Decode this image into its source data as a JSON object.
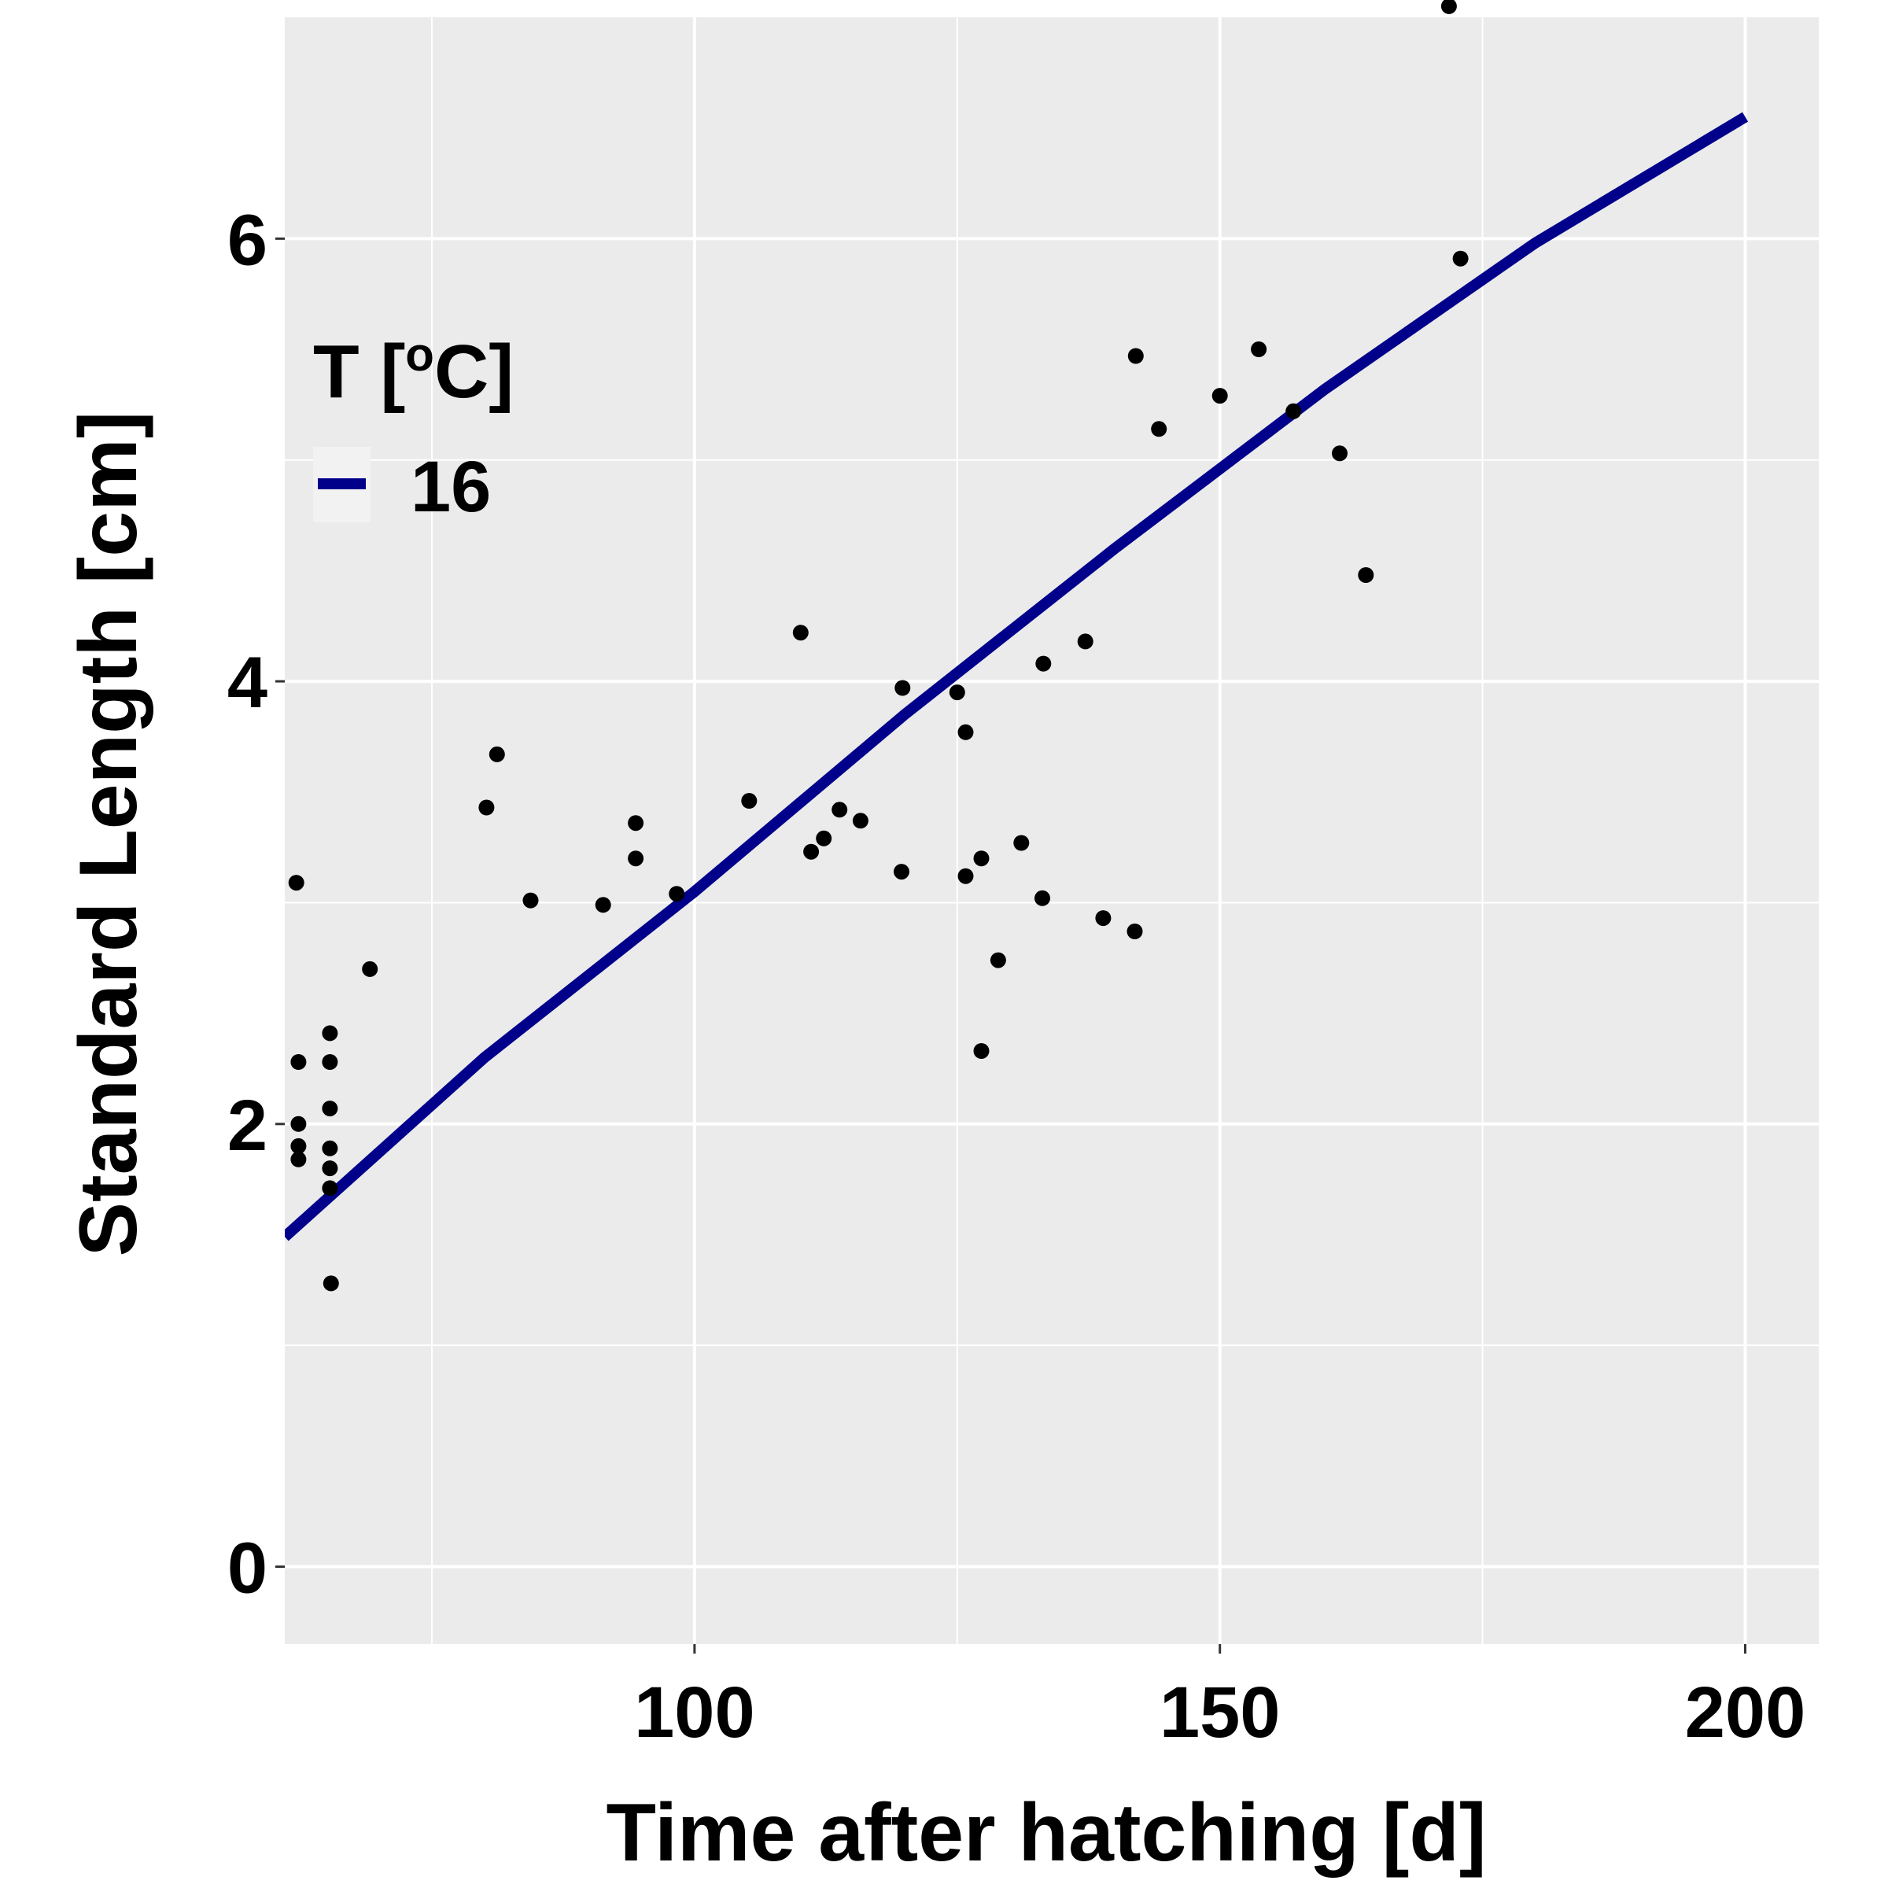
{
  "chart_data": {
    "type": "scatter",
    "xlabel": "Time after hatching [d]",
    "ylabel": "Standard Length [cm]",
    "xlim": [
      61,
      207
    ],
    "ylim": [
      -0.35,
      7.0
    ],
    "xticks": [
      100,
      150,
      200
    ],
    "yticks": [
      0,
      2,
      4,
      6
    ],
    "grid": true,
    "legend": {
      "placement": "top-left",
      "title": "T [",
      "title_sup": "o",
      "title_end": "C]",
      "entries": [
        {
          "label": "16",
          "color": "#00008B"
        }
      ]
    },
    "colors": {
      "panel": "#EBEBEB",
      "grid": "#FFFFFF",
      "points": "#000000",
      "fit_line": "#00008B"
    },
    "points": [
      [
        62.1,
        3.09
      ],
      [
        62.3,
        2.28
      ],
      [
        62.3,
        2.0
      ],
      [
        62.3,
        1.9
      ],
      [
        62.3,
        1.84
      ],
      [
        65.3,
        2.41
      ],
      [
        65.3,
        2.28
      ],
      [
        65.3,
        2.07
      ],
      [
        65.3,
        1.89
      ],
      [
        65.3,
        1.8
      ],
      [
        65.3,
        1.71
      ],
      [
        65.4,
        1.28
      ],
      [
        69.1,
        2.7
      ],
      [
        80.2,
        3.43
      ],
      [
        81.2,
        3.67
      ],
      [
        84.4,
        3.01
      ],
      [
        91.3,
        2.99
      ],
      [
        94.4,
        3.36
      ],
      [
        94.4,
        3.2
      ],
      [
        98.3,
        3.04
      ],
      [
        105.2,
        3.46
      ],
      [
        110.1,
        4.22
      ],
      [
        111.1,
        3.23
      ],
      [
        112.3,
        3.29
      ],
      [
        113.8,
        3.42
      ],
      [
        115.8,
        3.37
      ],
      [
        119.7,
        3.14
      ],
      [
        119.8,
        3.97
      ],
      [
        125.0,
        3.95
      ],
      [
        125.8,
        3.77
      ],
      [
        125.8,
        3.12
      ],
      [
        127.3,
        3.2
      ],
      [
        127.3,
        2.33
      ],
      [
        128.9,
        2.74
      ],
      [
        131.1,
        3.27
      ],
      [
        133.1,
        3.02
      ],
      [
        133.2,
        4.08
      ],
      [
        137.2,
        4.18
      ],
      [
        138.9,
        2.93
      ],
      [
        141.9,
        2.87
      ],
      [
        142.0,
        5.47
      ],
      [
        144.2,
        5.14
      ],
      [
        150.0,
        5.29
      ],
      [
        153.7,
        5.5
      ],
      [
        157.0,
        5.22
      ],
      [
        161.4,
        5.03
      ],
      [
        163.9,
        4.48
      ],
      [
        171.8,
        7.05
      ],
      [
        172.9,
        5.91
      ]
    ],
    "fit_line": {
      "x": [
        61,
        80,
        100,
        120,
        140,
        160,
        180,
        200
      ],
      "y": [
        1.49,
        2.3,
        3.05,
        3.85,
        4.6,
        5.32,
        5.98,
        6.55
      ]
    }
  }
}
